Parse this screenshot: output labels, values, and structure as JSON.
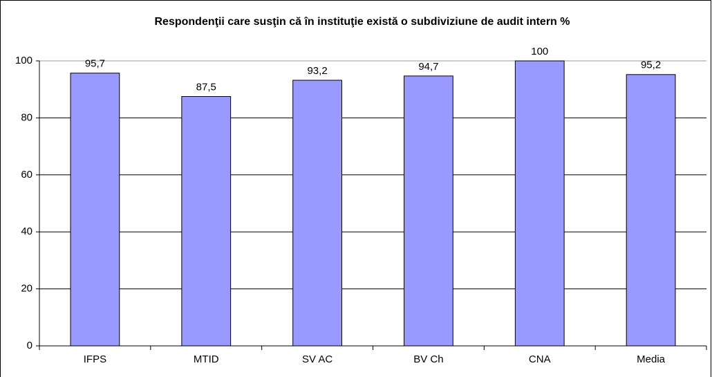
{
  "chart_data": {
    "type": "bar",
    "title": "Respondenţii care susţin că în instituţie există o subdiviziune de audit intern %",
    "categories": [
      "IFPS",
      "MTID",
      "SV AC",
      "BV Ch",
      "CNA",
      "Media"
    ],
    "values": [
      95.7,
      87.5,
      93.2,
      94.7,
      100,
      95.2
    ],
    "value_labels": [
      "95,7",
      "87,5",
      "93,2",
      "94,7",
      "100",
      "95,2"
    ],
    "color": "#9999ff",
    "ylim": [
      0,
      100
    ],
    "yticks": [
      0,
      20,
      40,
      60,
      80,
      100
    ],
    "grid": true
  }
}
